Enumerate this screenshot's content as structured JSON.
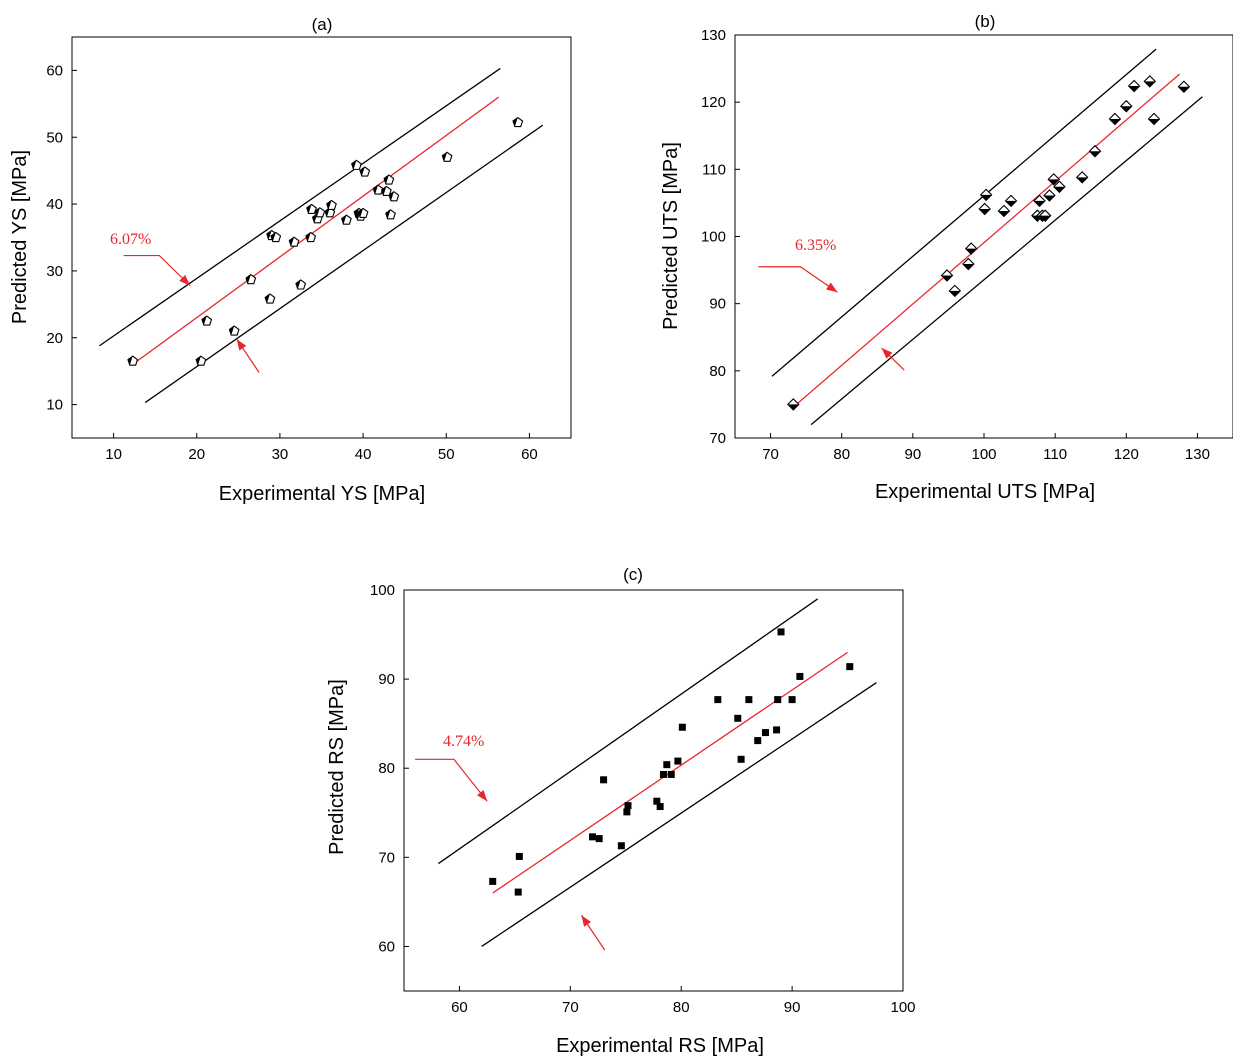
{
  "colors": {
    "axis": "#000000",
    "band": "#000000",
    "fit": "#e8262b",
    "annotation": "#e8262b"
  },
  "chart_data": [
    {
      "type": "scatter",
      "title": "(a)",
      "xlabel": "Experimental YS [MPa]",
      "ylabel": "Predicted YS [MPa]",
      "xlim": [
        5,
        65
      ],
      "ylim": [
        5,
        65
      ],
      "xticks": [
        10,
        20,
        30,
        40,
        50,
        60
      ],
      "yticks": [
        10,
        20,
        30,
        40,
        50,
        60
      ],
      "marker": "pentagon",
      "band_label": "6.07%",
      "fit_line": [
        [
          12.5,
          16.2
        ],
        [
          56.3,
          56.0
        ]
      ],
      "upper_line": [
        [
          8.3,
          18.8
        ],
        [
          56.5,
          60.3
        ]
      ],
      "lower_line": [
        [
          13.8,
          10.3
        ],
        [
          61.6,
          51.8
        ]
      ],
      "annotation_arrows": [
        {
          "from": [
            11.2,
            32.3
          ],
          "elbow": [
            15.5,
            32.3
          ],
          "to": [
            19.2,
            27.8
          ]
        },
        {
          "from": [
            27.5,
            14.8
          ],
          "to": [
            24.8,
            19.8
          ]
        }
      ],
      "points": [
        [
          12.3,
          16.5
        ],
        [
          20.5,
          16.5
        ],
        [
          21.2,
          22.5
        ],
        [
          24.5,
          21.0
        ],
        [
          26.5,
          28.7
        ],
        [
          28.8,
          25.8
        ],
        [
          29.0,
          35.3
        ],
        [
          29.5,
          35.0
        ],
        [
          31.7,
          34.3
        ],
        [
          32.5,
          27.9
        ],
        [
          33.7,
          35.0
        ],
        [
          33.8,
          39.2
        ],
        [
          34.5,
          37.8
        ],
        [
          34.8,
          38.7
        ],
        [
          36.0,
          38.7
        ],
        [
          36.2,
          39.8
        ],
        [
          38.0,
          37.6
        ],
        [
          39.2,
          45.8
        ],
        [
          39.5,
          38.6
        ],
        [
          39.7,
          38.2
        ],
        [
          40.0,
          38.6
        ],
        [
          40.2,
          44.8
        ],
        [
          41.8,
          42.1
        ],
        [
          42.8,
          41.9
        ],
        [
          43.1,
          43.6
        ],
        [
          43.3,
          38.4
        ],
        [
          43.7,
          41.1
        ],
        [
          50.1,
          47.0
        ],
        [
          58.6,
          52.2
        ]
      ]
    },
    {
      "type": "scatter",
      "title": "(b)",
      "xlabel": "Experimental UTS [MPa]",
      "ylabel": "Predicted UTS [MPa]",
      "xlim": [
        65,
        135
      ],
      "ylim": [
        70,
        130
      ],
      "xticks": [
        70,
        80,
        90,
        100,
        110,
        120,
        130
      ],
      "yticks": [
        70,
        80,
        90,
        100,
        110,
        120,
        130
      ],
      "marker": "half-diamond",
      "band_label": "6.35%",
      "fit_line": [
        [
          73.3,
          74.7
        ],
        [
          127.5,
          124.2
        ]
      ],
      "upper_line": [
        [
          70.2,
          79.2
        ],
        [
          124.2,
          127.9
        ]
      ],
      "lower_line": [
        [
          75.7,
          72.0
        ],
        [
          130.7,
          120.8
        ]
      ],
      "annotation_arrows": [
        {
          "from": [
            68.3,
            95.5
          ],
          "elbow": [
            74.2,
            95.5
          ],
          "to": [
            79.4,
            91.7
          ]
        },
        {
          "from": [
            88.8,
            80.1
          ],
          "to": [
            85.6,
            83.4
          ]
        }
      ],
      "points": [
        [
          73.2,
          75.0
        ],
        [
          94.8,
          94.2
        ],
        [
          95.9,
          91.9
        ],
        [
          97.8,
          95.9
        ],
        [
          98.2,
          98.2
        ],
        [
          100.1,
          104.1
        ],
        [
          100.3,
          106.2
        ],
        [
          102.8,
          103.8
        ],
        [
          103.8,
          105.3
        ],
        [
          107.5,
          103.1
        ],
        [
          107.8,
          105.3
        ],
        [
          108.2,
          103.1
        ],
        [
          108.6,
          103.1
        ],
        [
          109.2,
          106.1
        ],
        [
          109.8,
          108.5
        ],
        [
          110.6,
          107.4
        ],
        [
          113.8,
          108.8
        ],
        [
          115.6,
          112.7
        ],
        [
          118.4,
          117.5
        ],
        [
          120.0,
          119.4
        ],
        [
          121.1,
          122.4
        ],
        [
          123.3,
          123.1
        ],
        [
          123.9,
          117.5
        ],
        [
          128.1,
          122.3
        ]
      ]
    },
    {
      "type": "scatter",
      "title": "(c)",
      "xlabel": "Experimental RS [MPa]",
      "ylabel": "Predicted RS [MPa]",
      "xlim": [
        55,
        100
      ],
      "ylim": [
        55,
        100
      ],
      "xticks": [
        60,
        70,
        80,
        90,
        100
      ],
      "yticks": [
        60,
        70,
        80,
        90,
        100
      ],
      "marker": "square",
      "band_label": "4.74%",
      "fit_line": [
        [
          63.0,
          66.0
        ],
        [
          95.0,
          93.0
        ]
      ],
      "upper_line": [
        [
          58.1,
          69.3
        ],
        [
          92.3,
          99.0
        ]
      ],
      "lower_line": [
        [
          62.0,
          60.0
        ],
        [
          97.6,
          89.6
        ]
      ],
      "annotation_arrows": [
        {
          "from": [
            56.0,
            81.0
          ],
          "elbow": [
            59.5,
            81.0
          ],
          "to": [
            62.5,
            76.3
          ]
        },
        {
          "from": [
            73.1,
            59.6
          ],
          "to": [
            71.0,
            63.5
          ]
        }
      ],
      "points": [
        [
          63.0,
          67.3
        ],
        [
          65.3,
          66.1
        ],
        [
          65.4,
          70.1
        ],
        [
          72.0,
          72.3
        ],
        [
          72.6,
          72.1
        ],
        [
          73.0,
          78.7
        ],
        [
          74.6,
          71.3
        ],
        [
          75.1,
          75.1
        ],
        [
          75.2,
          75.8
        ],
        [
          77.8,
          76.3
        ],
        [
          78.1,
          75.7
        ],
        [
          78.4,
          79.3
        ],
        [
          78.7,
          80.4
        ],
        [
          79.1,
          79.3
        ],
        [
          79.7,
          80.8
        ],
        [
          80.1,
          84.6
        ],
        [
          83.3,
          87.7
        ],
        [
          85.1,
          85.6
        ],
        [
          85.4,
          81.0
        ],
        [
          86.1,
          87.7
        ],
        [
          86.9,
          83.1
        ],
        [
          87.6,
          84.0
        ],
        [
          88.6,
          84.3
        ],
        [
          88.7,
          87.7
        ],
        [
          89.0,
          95.3
        ],
        [
          90.0,
          87.7
        ],
        [
          90.7,
          90.3
        ],
        [
          95.2,
          91.4
        ]
      ]
    }
  ]
}
